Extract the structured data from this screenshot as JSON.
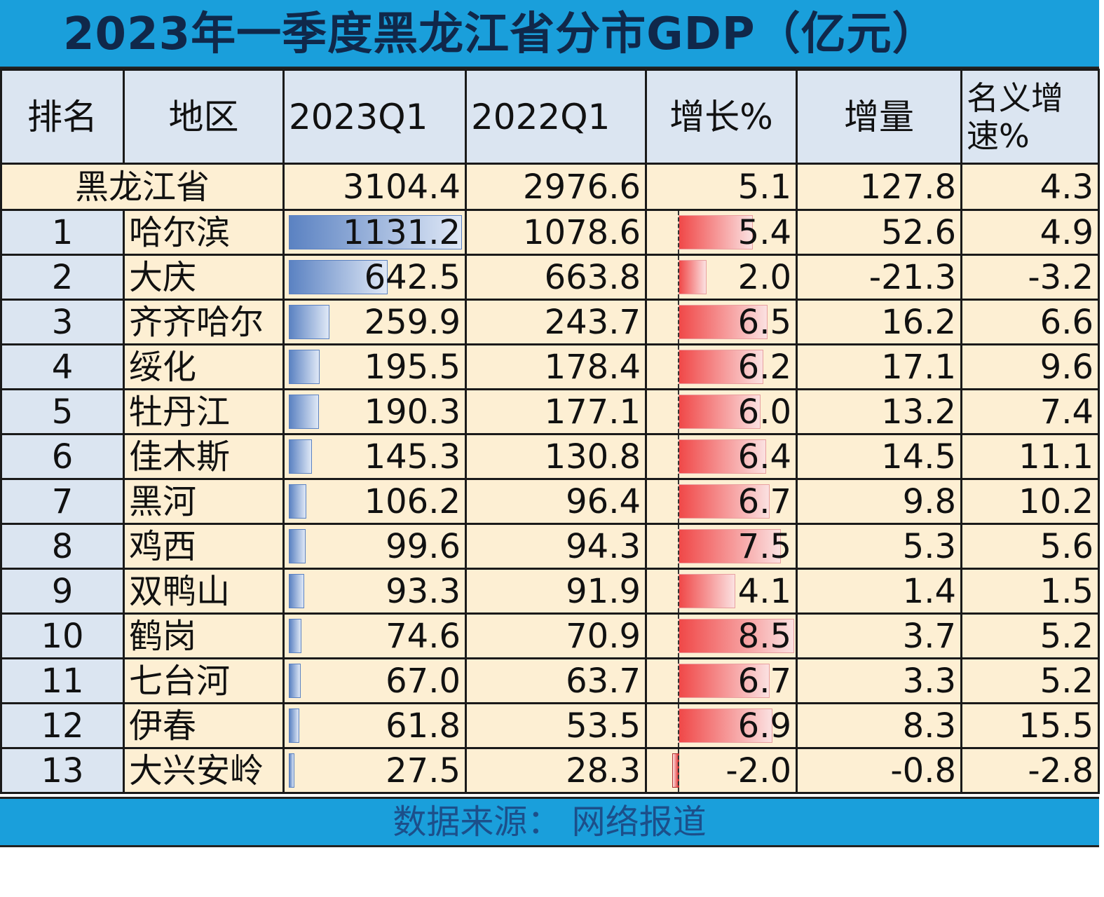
{
  "title": "2023年一季度黑龙江省分市GDP（亿元）",
  "footer": "数据来源：  网络报道",
  "colors": {
    "title_bar": "#1a9fdb",
    "header_bg": "#dbe5f1",
    "cell_bg": "#fdefd3",
    "gdp_bar": "#5b82c2",
    "growth_bar": "#f04848"
  },
  "chart_data": {
    "type": "table",
    "columns": [
      "排名",
      "地区",
      "2023Q1",
      "2022Q1",
      "增长%",
      "增量",
      "名义增速%"
    ],
    "total": {
      "region": "黑龙江省",
      "q1_2023": "3104.4",
      "q1_2022": "2976.6",
      "growth": "5.1",
      "increase": "127.8",
      "nominal": "4.3"
    },
    "rows": [
      {
        "rank": "1",
        "region": "哈尔滨",
        "q1_2023": "1131.2",
        "q1_2022": "1078.6",
        "growth": "5.4",
        "increase": "52.6",
        "nominal": "4.9"
      },
      {
        "rank": "2",
        "region": "大庆",
        "q1_2023": "642.5",
        "q1_2022": "663.8",
        "growth": "2.0",
        "increase": "-21.3",
        "nominal": "-3.2"
      },
      {
        "rank": "3",
        "region": "齐齐哈尔",
        "q1_2023": "259.9",
        "q1_2022": "243.7",
        "growth": "6.5",
        "increase": "16.2",
        "nominal": "6.6"
      },
      {
        "rank": "4",
        "region": "绥化",
        "q1_2023": "195.5",
        "q1_2022": "178.4",
        "growth": "6.2",
        "increase": "17.1",
        "nominal": "9.6"
      },
      {
        "rank": "5",
        "region": "牡丹江",
        "q1_2023": "190.3",
        "q1_2022": "177.1",
        "growth": "6.0",
        "increase": "13.2",
        "nominal": "7.4"
      },
      {
        "rank": "6",
        "region": "佳木斯",
        "q1_2023": "145.3",
        "q1_2022": "130.8",
        "growth": "6.4",
        "increase": "14.5",
        "nominal": "11.1"
      },
      {
        "rank": "7",
        "region": "黑河",
        "q1_2023": "106.2",
        "q1_2022": "96.4",
        "growth": "6.7",
        "increase": "9.8",
        "nominal": "10.2"
      },
      {
        "rank": "8",
        "region": "鸡西",
        "q1_2023": "99.6",
        "q1_2022": "94.3",
        "growth": "7.5",
        "increase": "5.3",
        "nominal": "5.6"
      },
      {
        "rank": "9",
        "region": "双鸭山",
        "q1_2023": "93.3",
        "q1_2022": "91.9",
        "growth": "4.1",
        "increase": "1.4",
        "nominal": "1.5"
      },
      {
        "rank": "10",
        "region": "鹤岗",
        "q1_2023": "74.6",
        "q1_2022": "70.9",
        "growth": "8.5",
        "increase": "3.7",
        "nominal": "5.2"
      },
      {
        "rank": "11",
        "region": "七台河",
        "q1_2023": "67.0",
        "q1_2022": "63.7",
        "growth": "6.7",
        "increase": "3.3",
        "nominal": "5.2"
      },
      {
        "rank": "12",
        "region": "伊春",
        "q1_2023": "61.8",
        "q1_2022": "53.5",
        "growth": "6.9",
        "increase": "8.3",
        "nominal": "15.5"
      },
      {
        "rank": "13",
        "region": "大兴安岭",
        "q1_2023": "27.5",
        "q1_2022": "28.3",
        "growth": "-2.0",
        "increase": "-0.8",
        "nominal": "-2.8"
      }
    ]
  }
}
